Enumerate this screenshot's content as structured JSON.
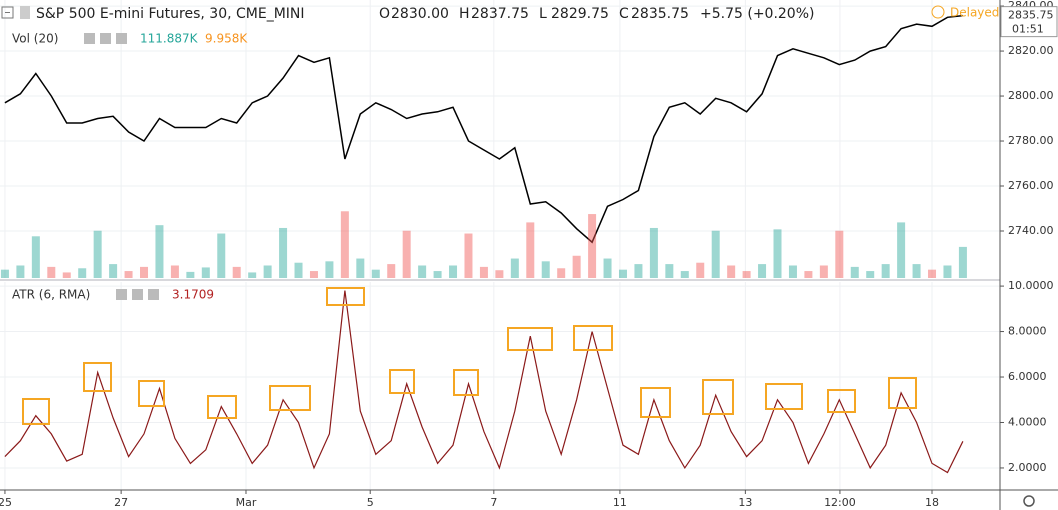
{
  "header": {
    "ohlc": [
      {
        "label": "O",
        "value": "2830.00"
      },
      {
        "label": "H",
        "value": "2837.75"
      },
      {
        "label": "L",
        "value": "2829.75"
      },
      {
        "label": "C",
        "value": "2835.75"
      }
    ],
    "change": "+5.75 (+0.20%)",
    "vol_readouts": [
      "111.887K",
      "9.958K"
    ],
    "status": "Delayed",
    "countdown": "01:51"
  },
  "chart_data": [
    {
      "type": "line",
      "x": [
        0,
        0.25,
        0.5,
        0.75,
        1,
        1.25,
        1.5,
        1.75,
        2,
        2.25,
        2.5,
        2.75,
        3,
        3.25,
        3.5,
        3.75,
        4,
        4.25,
        4.5,
        4.75,
        5,
        5.25,
        5.5,
        5.75,
        6,
        6.25,
        6.5,
        6.75,
        7,
        7.25,
        7.5,
        7.75,
        8,
        8.25,
        8.5,
        8.75,
        9,
        9.25,
        9.5,
        9.75,
        10,
        10.25,
        10.5,
        10.75,
        11,
        11.25,
        11.5,
        11.75,
        12,
        12.25,
        12.5,
        12.75,
        13,
        13.25,
        13.5,
        13.75,
        14,
        14.25,
        14.5,
        14.75,
        15,
        15.25,
        15.5
      ],
      "xlim": [
        -0.08,
        16.1
      ],
      "ylim": [
        2719.1,
        2842.7
      ],
      "yticks": [
        {
          "value": 2740,
          "label": "2740.00"
        },
        {
          "value": 2760,
          "label": "2760.00"
        },
        {
          "value": 2780,
          "label": "2780.00"
        },
        {
          "value": 2800,
          "label": "2800.00"
        },
        {
          "value": 2820,
          "label": "2820.00"
        },
        {
          "value": 2840,
          "label": "2840.00"
        }
      ],
      "y2lim": [
        0,
        1000
      ],
      "grid": true,
      "up_color": "#26a69a",
      "down_color": "#ef5350",
      "series": [
        {
          "name": "S&P 500 E-mini Futures, 30, CME_MINI",
          "color": "#000000",
          "values": [
            2797,
            2801,
            2810,
            2800,
            2788,
            2788,
            2790,
            2791,
            2784,
            2780,
            2790,
            2786,
            2786,
            2786,
            2790,
            2788,
            2797,
            2800,
            2808,
            2818,
            2815,
            2817,
            2772,
            2792,
            2797,
            2794,
            2790,
            2792,
            2793,
            2795,
            2780,
            2776,
            2772,
            2777,
            2752,
            2753,
            2748,
            2741,
            2735,
            2751,
            2754,
            2758,
            2782,
            2795,
            2797,
            2792,
            2799,
            2797,
            2793,
            2801,
            2818,
            2821,
            2819,
            2817,
            2814,
            2816,
            2820,
            2822,
            2830,
            2832,
            2831,
            2835,
            2835.75
          ]
        },
        {
          "name": "Vol (20)",
          "type": "bar",
          "axis": "y2",
          "values": [
            30,
            45,
            150,
            40,
            20,
            35,
            170,
            50,
            25,
            40,
            190,
            45,
            22,
            38,
            160,
            40,
            20,
            45,
            180,
            55,
            25,
            60,
            240,
            70,
            30,
            50,
            170,
            45,
            25,
            45,
            160,
            40,
            28,
            70,
            200,
            60,
            35,
            80,
            230,
            70,
            30,
            50,
            180,
            50,
            25,
            55,
            170,
            45,
            25,
            50,
            175,
            45,
            25,
            45,
            170,
            40,
            25,
            50,
            200,
            50,
            30,
            45,
            111.887
          ]
        }
      ]
    },
    {
      "type": "line",
      "x": [
        0,
        0.25,
        0.5,
        0.75,
        1,
        1.25,
        1.5,
        1.75,
        2,
        2.25,
        2.5,
        2.75,
        3,
        3.25,
        3.5,
        3.75,
        4,
        4.25,
        4.5,
        4.75,
        5,
        5.25,
        5.5,
        5.75,
        6,
        6.25,
        6.5,
        6.75,
        7,
        7.25,
        7.5,
        7.75,
        8,
        8.25,
        8.5,
        8.75,
        9,
        9.25,
        9.5,
        9.75,
        10,
        10.25,
        10.5,
        10.75,
        11,
        11.25,
        11.5,
        11.75,
        12,
        12.25,
        12.5,
        12.75,
        13,
        13.25,
        13.5,
        13.75,
        14,
        14.25,
        14.5,
        14.75,
        15,
        15.25,
        15.5
      ],
      "xlim": [
        -0.08,
        16.1
      ],
      "xticks": [
        {
          "value": 0,
          "label": "25"
        },
        {
          "value": 1.88,
          "label": "27"
        },
        {
          "value": 3.9,
          "label": "Mar"
        },
        {
          "value": 5.91,
          "label": "5"
        },
        {
          "value": 7.91,
          "label": "7"
        },
        {
          "value": 9.95,
          "label": "11"
        },
        {
          "value": 11.98,
          "label": "13"
        },
        {
          "value": 13.51,
          "label": "12:00"
        },
        {
          "value": 15,
          "label": "18"
        }
      ],
      "ylim": [
        1.03,
        10.18
      ],
      "yticks": [
        {
          "value": 2,
          "label": "2.0000"
        },
        {
          "value": 4,
          "label": "4.0000"
        },
        {
          "value": 6,
          "label": "6.0000"
        },
        {
          "value": 8,
          "label": "8.0000"
        },
        {
          "value": 10,
          "label": "10.0000"
        }
      ],
      "grid": true,
      "series": [
        {
          "name": "ATR (6, RMA)",
          "color": "#8b1a1a",
          "values": [
            2.5,
            3.2,
            4.3,
            3.5,
            2.3,
            2.6,
            6.2,
            4.2,
            2.5,
            3.5,
            5.5,
            3.3,
            2.2,
            2.8,
            4.7,
            3.5,
            2.2,
            3.0,
            5.0,
            4.0,
            2.0,
            3.5,
            9.8,
            4.5,
            2.6,
            3.2,
            5.7,
            3.8,
            2.2,
            3.0,
            5.7,
            3.6,
            2.0,
            4.5,
            7.8,
            4.5,
            2.6,
            5.0,
            8.0,
            5.5,
            3.0,
            2.6,
            5.0,
            3.2,
            2.0,
            3.0,
            5.2,
            3.6,
            2.5,
            3.2,
            5.0,
            4.0,
            2.2,
            3.5,
            5.0,
            3.5,
            2.0,
            3.0,
            5.3,
            4.0,
            2.2,
            1.8,
            3.1709
          ]
        }
      ]
    }
  ]
}
